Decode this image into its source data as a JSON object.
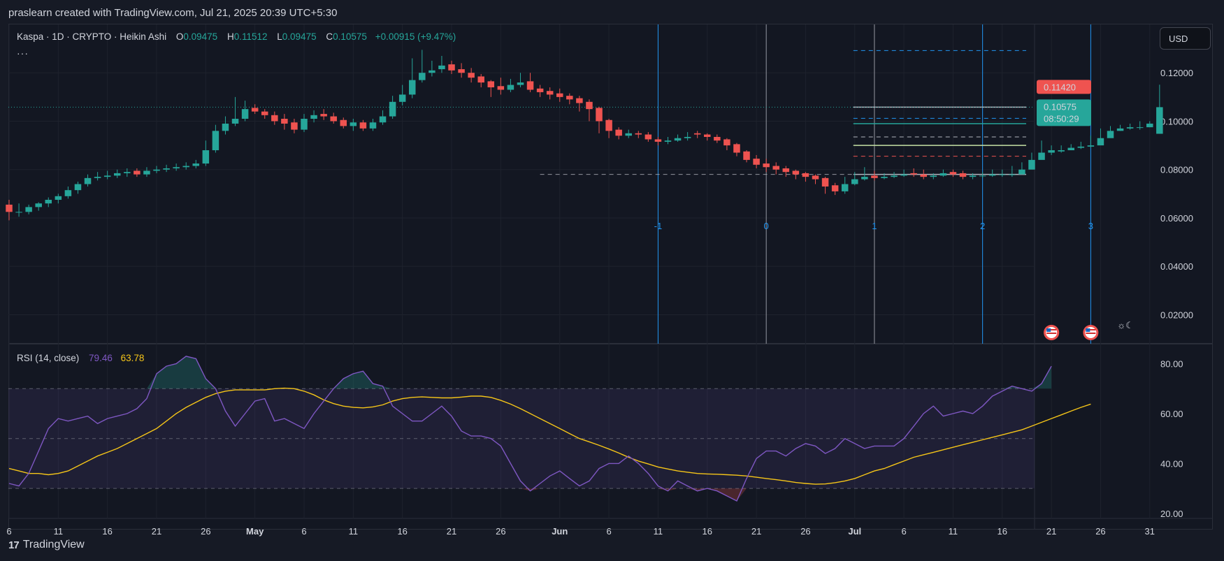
{
  "header": {
    "text": "praslearn created with TradingView.com, Jul 21, 2025 20:39 UTC+5:30"
  },
  "legend": {
    "symbol": "Kaspa · 1D · CRYPTO · Heikin Ashi",
    "open_label": "O",
    "open": "0.09475",
    "high_label": "H",
    "high": "0.11512",
    "low_label": "L",
    "low": "0.09475",
    "close_label": "C",
    "close": "0.10575",
    "change": "+0.00915 (+9.47%)",
    "more": "···"
  },
  "currency_button": "USD",
  "rsi_legend": {
    "label": "RSI (14, close)",
    "rsi": "79.46",
    "ma": "63.78"
  },
  "footer": {
    "brand": "TradingView"
  },
  "colors": {
    "up": "#26a69a",
    "down": "#ef5350",
    "rsi": "#7e57c2",
    "rsi_ma": "#f5c518",
    "fib": "#2196f3",
    "price_label": "#ef5350",
    "last_label": "#26a69a"
  },
  "price_labels": {
    "high_marker": "0.11420",
    "last": "0.10575",
    "countdown": "08:50:29"
  },
  "chart_data": [
    {
      "type": "candlestick",
      "style": "Heikin Ashi",
      "title": "Kaspa · 1D · CRYPTO · Heikin Ashi",
      "yticks": [
        "0.12000",
        "0.10000",
        "0.08000",
        "0.06000",
        "0.04000",
        "0.02000"
      ],
      "ytick_values": [
        0.12,
        0.1,
        0.08,
        0.06,
        0.04,
        0.02
      ],
      "ylim": [
        0.008,
        0.14
      ],
      "x_start": "2025-04-06",
      "x_end": "2025-07-31",
      "xticks": [
        "6",
        "11",
        "16",
        "21",
        "26",
        "May",
        "6",
        "11",
        "16",
        "21",
        "26",
        "Jun",
        "6",
        "11",
        "16",
        "21",
        "26",
        "Jul",
        "6",
        "11",
        "16",
        "21",
        "26",
        "31"
      ],
      "xtick_dates": [
        "2025-04-06",
        "2025-04-11",
        "2025-04-16",
        "2025-04-21",
        "2025-04-26",
        "2025-05-01",
        "2025-05-06",
        "2025-05-11",
        "2025-05-16",
        "2025-05-21",
        "2025-05-26",
        "2025-06-01",
        "2025-06-06",
        "2025-06-11",
        "2025-06-16",
        "2025-06-21",
        "2025-06-26",
        "2025-07-01",
        "2025-07-06",
        "2025-07-11",
        "2025-07-16",
        "2025-07-21",
        "2025-07-26",
        "2025-07-31"
      ],
      "closes": [
        0.0625,
        0.0625,
        0.0645,
        0.066,
        0.0675,
        0.069,
        0.0715,
        0.074,
        0.0765,
        0.077,
        0.0775,
        0.0785,
        0.079,
        0.078,
        0.0795,
        0.08,
        0.0805,
        0.081,
        0.0815,
        0.0825,
        0.088,
        0.096,
        0.099,
        0.101,
        0.105,
        0.104,
        0.1025,
        0.1,
        0.099,
        0.0965,
        0.101,
        0.1025,
        0.102,
        0.1,
        0.098,
        0.0995,
        0.097,
        0.0995,
        0.102,
        0.108,
        0.111,
        0.117,
        0.12,
        0.121,
        0.123,
        0.121,
        0.12,
        0.118,
        0.116,
        0.114,
        0.113,
        0.115,
        0.116,
        0.113,
        0.112,
        0.111,
        0.11,
        0.109,
        0.1075,
        0.105,
        0.1,
        0.096,
        0.094,
        0.095,
        0.0945,
        0.0925,
        0.0915,
        0.092,
        0.093,
        0.0935,
        0.0945,
        0.0935,
        0.092,
        0.09,
        0.087,
        0.084,
        0.082,
        0.081,
        0.08,
        0.079,
        0.078,
        0.077,
        0.076,
        0.073,
        0.071,
        0.074,
        0.076,
        0.077,
        0.0765,
        0.077,
        0.0775,
        0.078,
        0.078,
        0.077,
        0.0775,
        0.0785,
        0.078,
        0.077,
        0.0775,
        0.0775,
        0.078,
        0.078,
        0.078,
        0.08,
        0.084,
        0.087,
        0.088,
        0.088,
        0.089,
        0.0895,
        0.09,
        0.093,
        0.096,
        0.097,
        0.0975,
        0.0975,
        0.099,
        0.1058
      ],
      "opens": [
        0.0655,
        0.0625,
        0.0625,
        0.0645,
        0.066,
        0.0675,
        0.069,
        0.0715,
        0.074,
        0.0765,
        0.077,
        0.0775,
        0.0785,
        0.0795,
        0.078,
        0.0795,
        0.08,
        0.0805,
        0.081,
        0.0815,
        0.0825,
        0.088,
        0.096,
        0.099,
        0.101,
        0.1055,
        0.104,
        0.1025,
        0.101,
        0.0995,
        0.0965,
        0.101,
        0.103,
        0.102,
        0.1005,
        0.098,
        0.0995,
        0.097,
        0.0995,
        0.102,
        0.108,
        0.111,
        0.117,
        0.12,
        0.1215,
        0.1235,
        0.1215,
        0.12,
        0.1185,
        0.1165,
        0.1145,
        0.113,
        0.115,
        0.1165,
        0.1135,
        0.1125,
        0.1115,
        0.1105,
        0.1095,
        0.108,
        0.1055,
        0.1005,
        0.0965,
        0.094,
        0.095,
        0.0945,
        0.0925,
        0.0915,
        0.092,
        0.093,
        0.095,
        0.0945,
        0.0935,
        0.0925,
        0.0905,
        0.0875,
        0.0845,
        0.0825,
        0.0815,
        0.0805,
        0.0795,
        0.0785,
        0.0775,
        0.0765,
        0.0735,
        0.071,
        0.074,
        0.076,
        0.0775,
        0.0765,
        0.077,
        0.0775,
        0.0785,
        0.078,
        0.077,
        0.0775,
        0.079,
        0.0785,
        0.077,
        0.0775,
        0.0775,
        0.078,
        0.078,
        0.078,
        0.08,
        0.084,
        0.087,
        0.0875,
        0.088,
        0.089,
        0.0895,
        0.09,
        0.093,
        0.096,
        0.097,
        0.0975,
        0.0975,
        0.0948
      ],
      "highs": [
        0.0675,
        0.066,
        0.0655,
        0.0665,
        0.0685,
        0.07,
        0.073,
        0.075,
        0.078,
        0.079,
        0.0795,
        0.08,
        0.0805,
        0.0805,
        0.081,
        0.0815,
        0.082,
        0.0825,
        0.083,
        0.084,
        0.092,
        0.0985,
        0.102,
        0.11,
        0.1085,
        0.107,
        0.105,
        0.104,
        0.103,
        0.101,
        0.103,
        0.1045,
        0.105,
        0.1035,
        0.1015,
        0.101,
        0.1005,
        0.101,
        0.1045,
        0.1105,
        0.115,
        0.126,
        0.1295,
        0.125,
        0.127,
        0.125,
        0.124,
        0.122,
        0.1195,
        0.117,
        0.118,
        0.1175,
        0.12,
        0.12,
        0.115,
        0.114,
        0.1135,
        0.1115,
        0.1105,
        0.109,
        0.106,
        0.101,
        0.0975,
        0.0965,
        0.096,
        0.0955,
        0.0935,
        0.0935,
        0.0945,
        0.0955,
        0.096,
        0.095,
        0.0945,
        0.093,
        0.091,
        0.088,
        0.086,
        0.0845,
        0.083,
        0.0815,
        0.08,
        0.079,
        0.078,
        0.077,
        0.0745,
        0.077,
        0.079,
        0.081,
        0.0795,
        0.0785,
        0.079,
        0.08,
        0.0805,
        0.08,
        0.0785,
        0.08,
        0.08,
        0.0795,
        0.0785,
        0.079,
        0.08,
        0.08,
        0.0815,
        0.083,
        0.087,
        0.092,
        0.09,
        0.09,
        0.0905,
        0.0915,
        0.094,
        0.097,
        0.098,
        0.0985,
        0.099,
        0.1,
        0.1,
        0.1151
      ],
      "lows": [
        0.059,
        0.0605,
        0.0615,
        0.063,
        0.0645,
        0.066,
        0.068,
        0.07,
        0.073,
        0.0755,
        0.076,
        0.0765,
        0.077,
        0.077,
        0.077,
        0.0785,
        0.079,
        0.0795,
        0.08,
        0.0805,
        0.0815,
        0.087,
        0.0945,
        0.098,
        0.1,
        0.103,
        0.101,
        0.0985,
        0.0965,
        0.095,
        0.0955,
        0.0995,
        0.1005,
        0.099,
        0.097,
        0.096,
        0.096,
        0.096,
        0.0985,
        0.101,
        0.1065,
        0.1095,
        0.116,
        0.1185,
        0.12,
        0.1195,
        0.118,
        0.116,
        0.114,
        0.11,
        0.111,
        0.112,
        0.114,
        0.112,
        0.11,
        0.109,
        0.108,
        0.107,
        0.104,
        0.1,
        0.095,
        0.093,
        0.0925,
        0.093,
        0.093,
        0.0915,
        0.09,
        0.0905,
        0.0915,
        0.092,
        0.093,
        0.092,
        0.091,
        0.088,
        0.0855,
        0.083,
        0.0805,
        0.079,
        0.078,
        0.077,
        0.076,
        0.075,
        0.074,
        0.07,
        0.0695,
        0.07,
        0.0735,
        0.0755,
        0.0755,
        0.076,
        0.0765,
        0.077,
        0.077,
        0.076,
        0.076,
        0.077,
        0.077,
        0.076,
        0.076,
        0.0765,
        0.077,
        0.077,
        0.077,
        0.079,
        0.083,
        0.086,
        0.086,
        0.087,
        0.088,
        0.0885,
        0.089,
        0.092,
        0.095,
        0.096,
        0.0965,
        0.0965,
        0.0975,
        0.0948
      ],
      "horizontal_levels": {
        "solid_white": [
          0.1058,
          0.078
        ],
        "solid_teal": [
          0.099
        ],
        "solid_green": [
          0.09
        ],
        "dashed_blue": [
          0.1292,
          0.1012
        ],
        "dashed_white": [
          0.0935
        ],
        "dashed_red": [
          0.0855
        ]
      },
      "dotted_last_price": 0.1058,
      "fib_time_zones": [
        {
          "label": "-1",
          "date": "2025-06-11"
        },
        {
          "label": "0",
          "date": "2025-06-22"
        },
        {
          "label": "1",
          "date": "2025-07-03"
        },
        {
          "label": "2",
          "date": "2025-07-14"
        },
        {
          "label": "3",
          "date": "2025-07-25"
        }
      ],
      "event_markers": [
        "2025-07-21",
        "2025-07-22",
        "2025-07-25"
      ]
    },
    {
      "type": "line",
      "title": "RSI (14, close)",
      "ylim": [
        18,
        88
      ],
      "yticks": [
        "80.00",
        "60.00",
        "40.00",
        "20.00"
      ],
      "ytick_values": [
        80,
        60,
        40,
        20
      ],
      "bands": [
        70,
        50,
        30
      ],
      "x_start": "2025-04-06",
      "series": [
        {
          "name": "RSI",
          "values": [
            32,
            31,
            36,
            45,
            54,
            58,
            57,
            58,
            59,
            56,
            58,
            59,
            60,
            62,
            66,
            76,
            79,
            80,
            83,
            82,
            74,
            70,
            61,
            55,
            60,
            65,
            66,
            57,
            58,
            56,
            54,
            60,
            65,
            70,
            74,
            76,
            77,
            72,
            71,
            63,
            60,
            57,
            57,
            60,
            63,
            59,
            53,
            51,
            51,
            50,
            47,
            40,
            33,
            29,
            32,
            35,
            37,
            34,
            31,
            33,
            38,
            40,
            40,
            43,
            40,
            36,
            31,
            29,
            33,
            31,
            29,
            30,
            29,
            27,
            25,
            34,
            42,
            45,
            45,
            43,
            46,
            48,
            47,
            44,
            46,
            50,
            48,
            46,
            47,
            47,
            47,
            50,
            55,
            60,
            63,
            59,
            60,
            61,
            60,
            63,
            67,
            69,
            71,
            70,
            69,
            72,
            79
          ]
        },
        {
          "name": "MA",
          "values": [
            38,
            37,
            36,
            36,
            35.5,
            36,
            37,
            39,
            41,
            43,
            44.5,
            46,
            48,
            50,
            52,
            54,
            57,
            60,
            62.5,
            64.5,
            66.5,
            68,
            69,
            69.5,
            69.5,
            69.5,
            69.5,
            70,
            70.2,
            70,
            69,
            67.5,
            65.5,
            64,
            63,
            62.5,
            62.3,
            62.7,
            63.5,
            65,
            66,
            66.5,
            66.7,
            66.5,
            66.3,
            66.3,
            66.6,
            67,
            67,
            66.5,
            65.3,
            63.8,
            62,
            60,
            58,
            56,
            54,
            52,
            50,
            48.7,
            47.3,
            45.8,
            44.2,
            42.5,
            41,
            39.8,
            38.6,
            37.8,
            37,
            36.5,
            36,
            35.8,
            35.7,
            35.5,
            35.3,
            35,
            34.5,
            34,
            33.5,
            33,
            32.4,
            32,
            31.7,
            31.8,
            32.3,
            33,
            34,
            35.5,
            37,
            38,
            39.5,
            41,
            42.5,
            43.5,
            44.5,
            45.5,
            46.5,
            47.5,
            48.5,
            49.5,
            50.5,
            51.5,
            52.5,
            53.5,
            55,
            56.5,
            58,
            59.5,
            61,
            62.5,
            63.8
          ]
        }
      ]
    }
  ]
}
